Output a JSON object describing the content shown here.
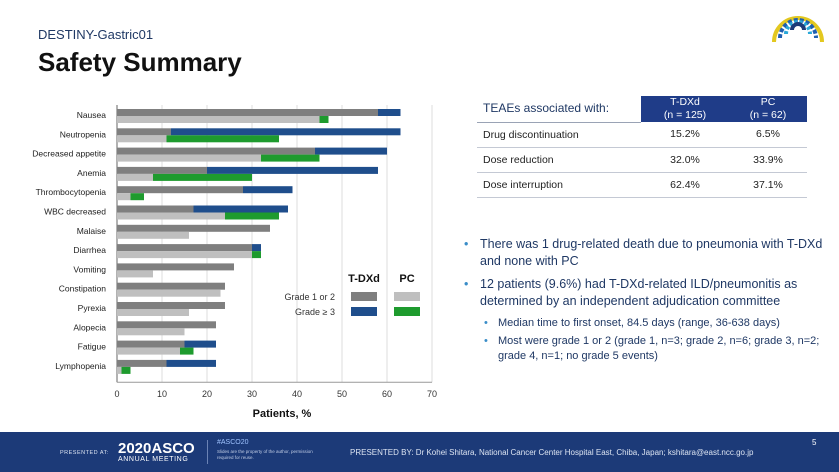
{
  "header": {
    "study": "DESTINY-Gastric01",
    "title": "Safety Summary"
  },
  "chart_data": {
    "type": "bar",
    "orientation": "horizontal",
    "categories": [
      "Nausea",
      "Neutropenia",
      "Decreased appetite",
      "Anemia",
      "Thrombocytopenia",
      "WBC decreased",
      "Malaise",
      "Diarrhea",
      "Vomiting",
      "Constipation",
      "Pyrexia",
      "Alopecia",
      "Fatigue",
      "Lymphopenia"
    ],
    "series": [
      {
        "name": "T-DXd Grade 1 or 2",
        "arm": "T-DXd",
        "grade": "Grade 1 or 2",
        "color": "#7f7f7f",
        "values": [
          58,
          12,
          44,
          20,
          28,
          17,
          34,
          30,
          26,
          24,
          24,
          22,
          15,
          11
        ]
      },
      {
        "name": "T-DXd Grade ≥ 3",
        "arm": "T-DXd",
        "grade": "Grade ≥ 3",
        "color": "#1f4e8c",
        "values": [
          5,
          51,
          16,
          38,
          11,
          21,
          0,
          2,
          0,
          0,
          0,
          0,
          7,
          11
        ]
      },
      {
        "name": "PC Grade 1 or 2",
        "arm": "PC",
        "grade": "Grade 1 or 2",
        "color": "#bfbfbf",
        "values": [
          45,
          11,
          32,
          8,
          3,
          24,
          16,
          30,
          8,
          23,
          16,
          15,
          14,
          1
        ]
      },
      {
        "name": "PC Grade ≥ 3",
        "arm": "PC",
        "grade": "Grade ≥ 3",
        "color": "#1e9b2e",
        "values": [
          2,
          25,
          13,
          22,
          3,
          12,
          0,
          2,
          0,
          0,
          0,
          0,
          3,
          2
        ]
      }
    ],
    "xlim": [
      0,
      70
    ],
    "xticks": [
      0,
      10,
      20,
      30,
      40,
      50,
      60,
      70
    ],
    "xlabel": "Patients, %",
    "legend": {
      "col_headers": [
        "T-DXd",
        "PC"
      ],
      "row_labels": [
        "Grade 1 or 2",
        "Grade ≥ 3"
      ],
      "placement": "bottom-right"
    }
  },
  "table": {
    "header_label": "TEAEs associated with:",
    "columns": [
      {
        "name": "T-DXd",
        "n": "(n = 125)"
      },
      {
        "name": "PC",
        "n": "(n = 62)"
      }
    ],
    "rows": [
      {
        "label": "Drug discontinuation",
        "tdxd": "15.2%",
        "pc": "6.5%"
      },
      {
        "label": "Dose reduction",
        "tdxd": "32.0%",
        "pc": "33.9%"
      },
      {
        "label": "Dose interruption",
        "tdxd": "62.4%",
        "pc": "37.1%"
      }
    ]
  },
  "bullets": {
    "b1": "There was 1 drug-related death due to pneumonia with T-DXd and none with PC",
    "b2": "12 patients (9.6%) had T-DXd-related ILD/pneumonitis as determined by an independent adjudication committee",
    "sub1": "Median time to first onset, 84.5 days (range, 36-638 days)",
    "sub2": "Most were grade 1 or 2 (grade 1, n=3; grade 2, n=6; grade 3, n=2; grade 4, n=1; no grade 5 events)"
  },
  "footer": {
    "presented_at": "PRESENTED AT:",
    "asco_year": "2020ASCO",
    "asco_meeting": "ANNUAL MEETING",
    "hashtag": "#ASCO20",
    "fine_print": "Slides are the property of the author, permission required for reuse.",
    "presented_by": "PRESENTED BY: Dr Kohei Shitara, National Cancer Center Hospital East, Chiba, Japan; kshitara@east.ncc.go.jp",
    "page": "5"
  },
  "colors": {
    "brand_navy": "#1c3a78",
    "table_header": "#1f3c88",
    "title_blue": "#1f3864"
  }
}
